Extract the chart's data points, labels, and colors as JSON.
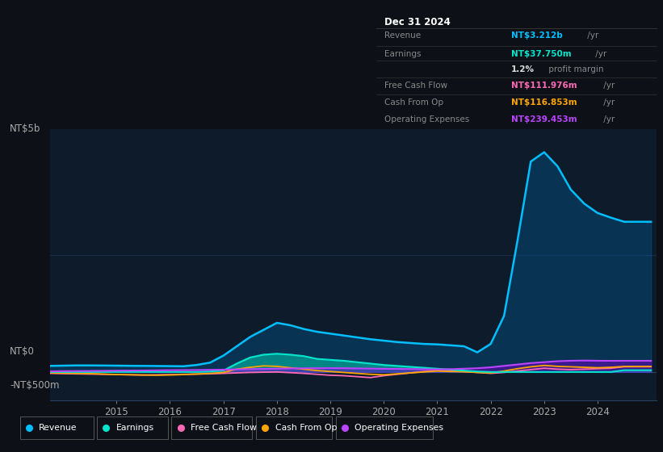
{
  "bg_color": "#0d1117",
  "plot_bg_color": "#0d1b2a",
  "info_box": {
    "title": "Dec 31 2024",
    "rows": [
      {
        "label": "Revenue",
        "value": "NT$3.212b",
        "unit": " /yr",
        "value_color": "#00bfff"
      },
      {
        "label": "Earnings",
        "value": "NT$37.750m",
        "unit": " /yr",
        "value_color": "#00e5cc"
      },
      {
        "label": "",
        "value": "1.2%",
        "unit": " profit margin",
        "value_color": "#dddddd"
      },
      {
        "label": "Free Cash Flow",
        "value": "NT$111.976m",
        "unit": " /yr",
        "value_color": "#ff69b4"
      },
      {
        "label": "Cash From Op",
        "value": "NT$116.853m",
        "unit": " /yr",
        "value_color": "#ffa500"
      },
      {
        "label": "Operating Expenses",
        "value": "NT$239.453m",
        "unit": " /yr",
        "value_color": "#bb44ff"
      }
    ]
  },
  "legend": [
    {
      "label": "Revenue",
      "color": "#00bfff"
    },
    {
      "label": "Earnings",
      "color": "#00e5cc"
    },
    {
      "label": "Free Cash Flow",
      "color": "#ff69b4"
    },
    {
      "label": "Cash From Op",
      "color": "#ffa500"
    },
    {
      "label": "Operating Expenses",
      "color": "#bb44ff"
    }
  ],
  "x_years": [
    2013.75,
    2014.0,
    2014.25,
    2014.5,
    2014.75,
    2015.0,
    2015.25,
    2015.5,
    2015.75,
    2016.0,
    2016.25,
    2016.5,
    2016.75,
    2017.0,
    2017.25,
    2017.5,
    2017.75,
    2018.0,
    2018.25,
    2018.5,
    2018.75,
    2019.0,
    2019.25,
    2019.5,
    2019.75,
    2020.0,
    2020.25,
    2020.5,
    2020.75,
    2021.0,
    2021.25,
    2021.5,
    2021.75,
    2022.0,
    2022.25,
    2022.5,
    2022.75,
    2023.0,
    2023.25,
    2023.5,
    2023.75,
    2024.0,
    2024.25,
    2024.5,
    2024.75,
    2025.0
  ],
  "revenue": [
    130,
    135,
    140,
    140,
    138,
    135,
    132,
    130,
    128,
    125,
    122,
    150,
    200,
    350,
    550,
    750,
    900,
    1050,
    1000,
    920,
    860,
    820,
    780,
    740,
    700,
    670,
    640,
    620,
    600,
    590,
    570,
    550,
    420,
    600,
    1200,
    2800,
    4500,
    4700,
    4400,
    3900,
    3600,
    3400,
    3300,
    3212,
    3212,
    3212
  ],
  "earnings": [
    0,
    0,
    0,
    0,
    0,
    0,
    0,
    0,
    0,
    0,
    0,
    0,
    10,
    30,
    180,
    310,
    370,
    390,
    370,
    340,
    280,
    260,
    240,
    210,
    180,
    150,
    130,
    110,
    90,
    70,
    50,
    30,
    10,
    0,
    0,
    0,
    0,
    0,
    0,
    0,
    0,
    0,
    0,
    38,
    38,
    38
  ],
  "free_cash_flow": [
    -30,
    -35,
    -40,
    -45,
    -50,
    -55,
    -60,
    -65,
    -60,
    -55,
    -50,
    -45,
    -40,
    -30,
    -20,
    -10,
    -5,
    0,
    -15,
    -30,
    -50,
    -70,
    -80,
    -100,
    -120,
    -80,
    -50,
    -20,
    10,
    30,
    20,
    10,
    -10,
    -30,
    -10,
    20,
    50,
    80,
    60,
    50,
    60,
    70,
    80,
    112,
    112,
    112
  ],
  "cash_from_op": [
    -20,
    -25,
    -30,
    -35,
    -45,
    -55,
    -60,
    -65,
    -70,
    -65,
    -55,
    -45,
    -30,
    -10,
    60,
    100,
    130,
    120,
    90,
    60,
    30,
    10,
    -10,
    -30,
    -50,
    -60,
    -40,
    -20,
    0,
    20,
    10,
    5,
    -10,
    -20,
    20,
    70,
    110,
    140,
    120,
    110,
    100,
    90,
    100,
    117,
    117,
    117
  ],
  "operating_expenses": [
    15,
    18,
    20,
    22,
    25,
    28,
    30,
    32,
    35,
    38,
    40,
    42,
    45,
    50,
    55,
    60,
    65,
    70,
    75,
    78,
    80,
    82,
    80,
    76,
    72,
    68,
    65,
    62,
    58,
    55,
    60,
    70,
    80,
    100,
    130,
    160,
    190,
    210,
    230,
    240,
    245,
    240,
    238,
    239,
    239,
    239
  ],
  "xlim": [
    2013.75,
    2025.1
  ],
  "ylim_min": -600,
  "ylim_max": 5200,
  "xticks": [
    2015,
    2016,
    2017,
    2018,
    2019,
    2020,
    2021,
    2022,
    2023,
    2024
  ]
}
